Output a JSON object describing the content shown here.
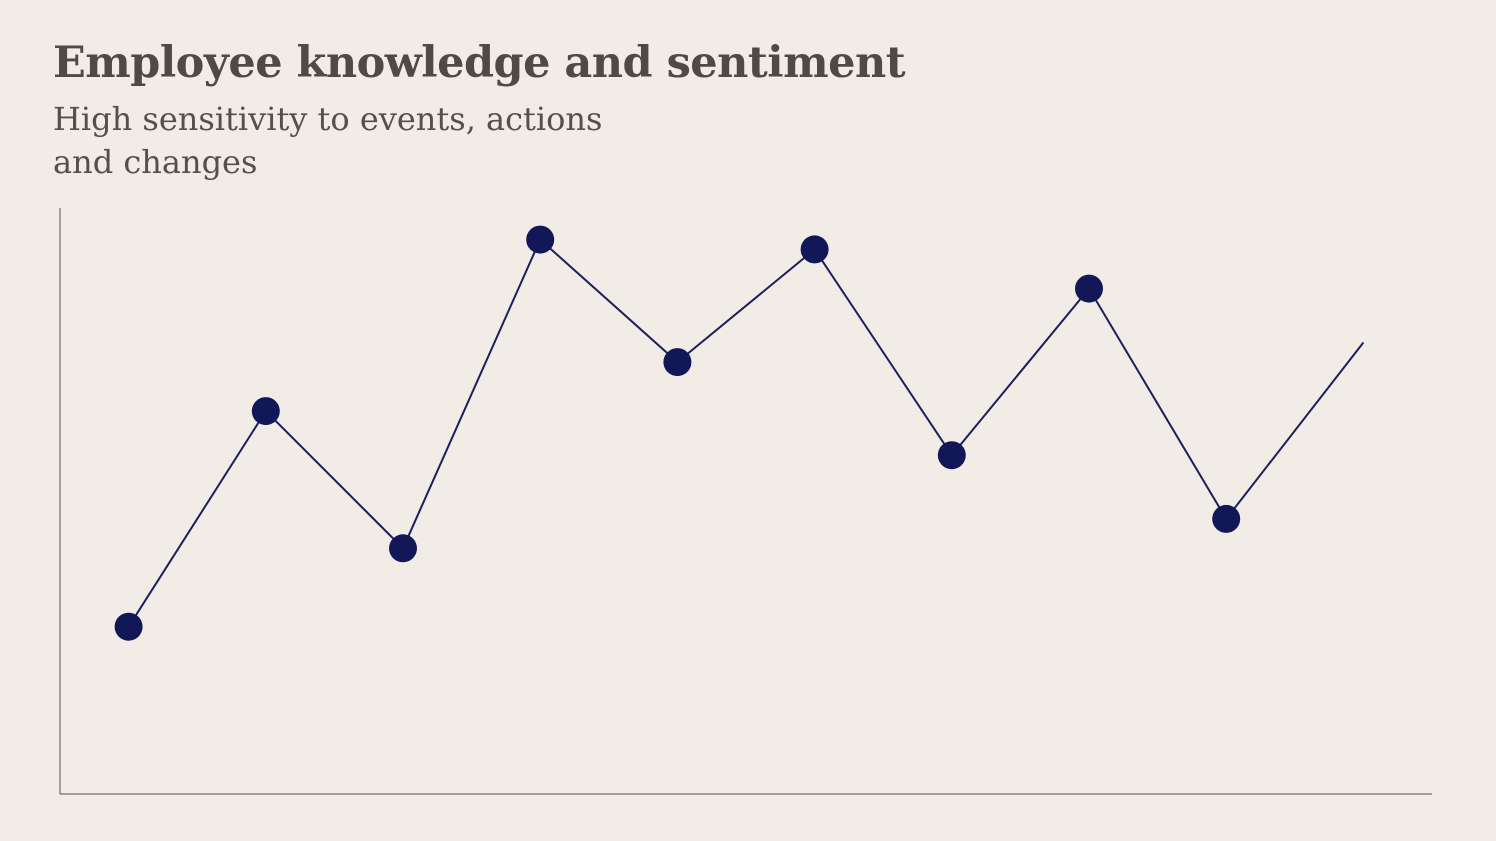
{
  "title": "Employee knowledge and sentiment",
  "subtitle_line1": "High sensitivity to events, actions",
  "subtitle_line2": "and changes",
  "chart_data": {
    "type": "line",
    "title": "Employee knowledge and sentiment",
    "subtitle": "High sensitivity to events, actions and changes",
    "xlabel": "",
    "ylabel": "",
    "x": [
      1,
      2,
      3,
      4,
      5,
      6,
      7,
      8,
      9,
      10
    ],
    "values": [
      17,
      61,
      33,
      96,
      71,
      94,
      52,
      86,
      39,
      75
    ],
    "markers": [
      true,
      true,
      true,
      true,
      true,
      true,
      true,
      true,
      true,
      false
    ],
    "ylim": [
      0,
      100
    ],
    "xlim": [
      0.5,
      10.5
    ],
    "grid": false,
    "legend": "none",
    "line_color": "#1b1f5c",
    "marker_color": "#121857",
    "axis_color": "#55504a"
  }
}
